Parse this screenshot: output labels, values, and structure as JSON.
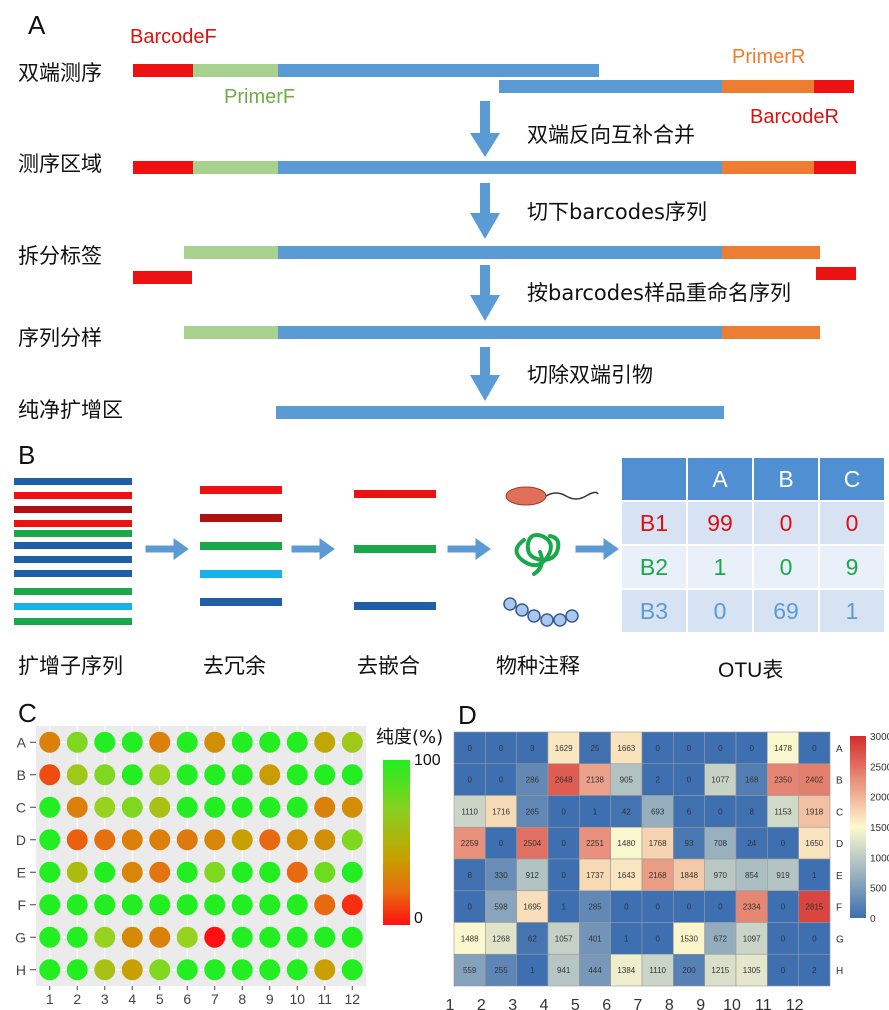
{
  "panels": {
    "a": "A",
    "b": "B",
    "c": "C",
    "d": "D"
  },
  "panel_a": {
    "rows": [
      "双端测序",
      "测序区域",
      "拆分标签",
      "序列分样",
      "纯净扩增区"
    ],
    "labels": {
      "barcode_f": "BarcodeF",
      "primer_f": "PrimerF",
      "primer_r": "PrimerR",
      "barcode_r": "BarcodeR"
    },
    "steps": [
      "双端反向互补合并",
      "切下barcodes序列",
      "按barcodes样品重命名序列",
      "切除双端引物"
    ],
    "colors": {
      "barcode": "#ee1111",
      "primer_f": "#a9d18e",
      "read": "#5b9bd5",
      "primer_r": "#ed7d31"
    }
  },
  "panel_b": {
    "stages": [
      "扩增子序列",
      "去冗余",
      "去嵌合",
      "物种注释",
      "OTU表"
    ],
    "otu_table": {
      "columns": [
        "",
        "A",
        "B",
        "C"
      ],
      "rows": [
        {
          "id": "B1",
          "values": [
            "99",
            "0",
            "0"
          ],
          "color": "#e01010"
        },
        {
          "id": "B2",
          "values": [
            "1",
            "0",
            "9"
          ],
          "color": "#1aa84a"
        },
        {
          "id": "B3",
          "values": [
            "0",
            "69",
            "1"
          ],
          "color": "#5b9bd5"
        }
      ]
    }
  },
  "panel_c": {
    "legend_title": "纯度(%)",
    "legend_max": "100",
    "legend_min": "0",
    "rows": [
      "A",
      "B",
      "C",
      "D",
      "E",
      "F",
      "G",
      "H"
    ],
    "cols": [
      "1",
      "2",
      "3",
      "4",
      "5",
      "6",
      "7",
      "8",
      "9",
      "10",
      "11",
      "12"
    ],
    "purity": [
      [
        55,
        88,
        100,
        100,
        55,
        100,
        62,
        100,
        100,
        100,
        72,
        82
      ],
      [
        30,
        82,
        88,
        100,
        85,
        100,
        100,
        100,
        68,
        100,
        100,
        100
      ],
      [
        100,
        55,
        85,
        88,
        80,
        100,
        100,
        100,
        100,
        100,
        55,
        62
      ],
      [
        100,
        40,
        48,
        55,
        55,
        52,
        58,
        70,
        45,
        62,
        62,
        88
      ],
      [
        100,
        78,
        100,
        58,
        50,
        100,
        88,
        100,
        100,
        45,
        90,
        100
      ],
      [
        100,
        100,
        100,
        100,
        100,
        100,
        100,
        100,
        100,
        100,
        45,
        15
      ],
      [
        100,
        100,
        85,
        60,
        55,
        85,
        0,
        100,
        100,
        100,
        100,
        100
      ],
      [
        100,
        100,
        80,
        70,
        88,
        100,
        100,
        100,
        100,
        100,
        70,
        100
      ]
    ]
  },
  "chart_data": {
    "type": "heatmap",
    "rows": [
      "A",
      "B",
      "C",
      "D",
      "E",
      "F",
      "G",
      "H"
    ],
    "cols": [
      "1",
      "2",
      "3",
      "4",
      "5",
      "6",
      "7",
      "8",
      "9",
      "10",
      "11",
      "12"
    ],
    "values": [
      [
        0,
        0,
        3,
        1629,
        25,
        1663,
        0,
        0,
        0,
        0,
        1478,
        0
      ],
      [
        0,
        0,
        286,
        2648,
        2138,
        905,
        2,
        0,
        1077,
        168,
        2350,
        2402
      ],
      [
        1110,
        1716,
        265,
        0,
        1,
        42,
        693,
        6,
        0,
        8,
        1153,
        1918
      ],
      [
        2259,
        0,
        2504,
        0,
        2251,
        1480,
        1768,
        93,
        708,
        24,
        0,
        1650
      ],
      [
        8,
        330,
        912,
        0,
        1737,
        1643,
        2168,
        1848,
        970,
        854,
        919,
        1
      ],
      [
        0,
        598,
        1695,
        1,
        285,
        0,
        0,
        0,
        0,
        2334,
        0,
        2815
      ],
      [
        1488,
        1268,
        62,
        1057,
        401,
        1,
        0,
        1530,
        672,
        1097,
        0,
        0
      ],
      [
        559,
        255,
        1,
        941,
        444,
        1384,
        1110,
        200,
        1215,
        1305,
        0,
        2
      ]
    ],
    "colorbar_ticks": [
      "3000",
      "2500",
      "2000",
      "1500",
      "1000",
      "500",
      "0"
    ],
    "zrange": [
      0,
      3000
    ],
    "colors": {
      "low": "#3e6fb0",
      "mid": "#fdf9cf",
      "high": "#d42c2c"
    }
  }
}
